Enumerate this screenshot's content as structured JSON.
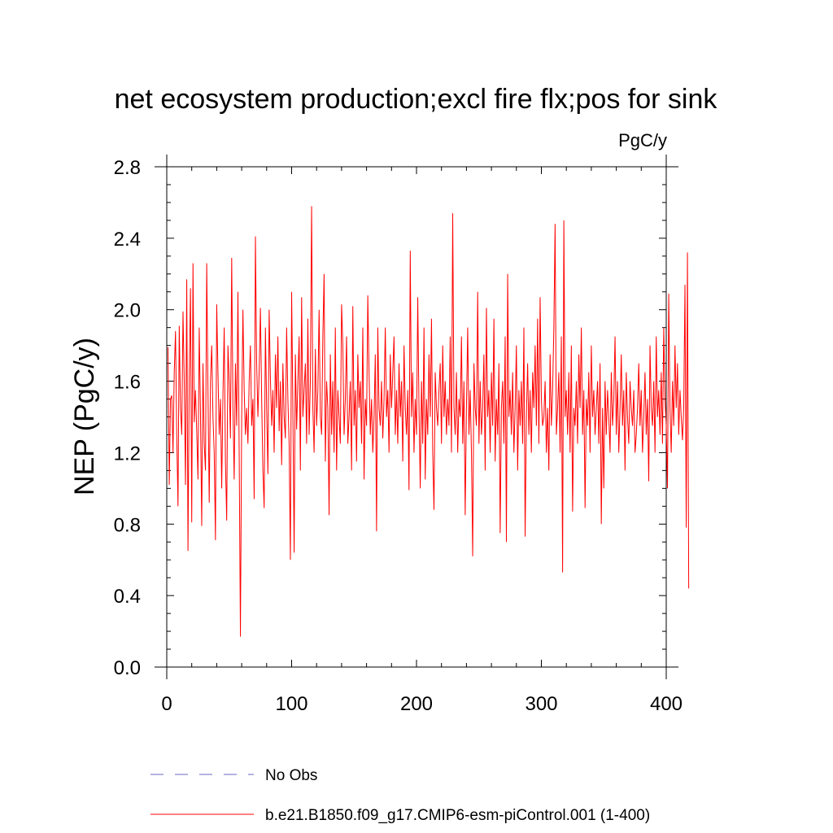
{
  "chart_data": {
    "type": "line",
    "title": "net ecosystem production;excl fire flx;pos for sink",
    "units": "PgC/y",
    "ylabel": "NEP  (PgC/y)",
    "xlabel": "",
    "xlim": [
      0,
      400
    ],
    "ylim": [
      0.0,
      2.8
    ],
    "xticks": [
      0,
      100,
      200,
      300,
      400
    ],
    "xtick_labels": [
      "0",
      "100",
      "200",
      "300",
      "400"
    ],
    "yticks": [
      0.0,
      0.4,
      0.8,
      1.2,
      1.6,
      2.0,
      2.4,
      2.8
    ],
    "ytick_labels": [
      "0.0",
      "0.4",
      "0.8",
      "1.2",
      "1.6",
      "2.0",
      "2.4",
      "2.8"
    ],
    "series": [
      {
        "name": "b.e21.B1850.f09_g17.CMIP6-esm-piControl.001 (1-400)",
        "color": "#ff0000",
        "x_start": 1,
        "values": [
          1.79,
          1.02,
          1.5,
          1.52,
          1.2,
          1.65,
          1.88,
          1.3,
          0.9,
          1.91,
          1.45,
          1.3,
          1.99,
          1.6,
          1.02,
          2.17,
          0.65,
          1.62,
          2.12,
          0.81,
          2.26,
          1.37,
          1.55,
          1.32,
          1.05,
          1.9,
          1.42,
          0.79,
          1.7,
          1.25,
          1.1,
          2.26,
          1.55,
          0.92,
          1.6,
          1.8,
          1.4,
          1.2,
          0.71,
          2.03,
          1.65,
          1.3,
          1.5,
          1.0,
          1.52,
          1.9,
          1.15,
          0.82,
          1.8,
          1.6,
          1.28,
          2.29,
          1.45,
          1.05,
          1.7,
          1.35,
          2.1,
          1.2,
          0.17,
          1.4,
          2.0,
          1.55,
          1.3,
          1.45,
          1.25,
          1.6,
          1.8,
          1.35,
          1.5,
          0.94,
          2.41,
          1.7,
          1.4,
          1.65,
          2.01,
          1.5,
          1.1,
          0.89,
          1.9,
          1.45,
          1.08,
          2.0,
          1.62,
          1.35,
          1.55,
          1.2,
          1.75,
          1.45,
          1.85,
          1.32,
          1.6,
          1.13,
          1.7,
          1.4,
          1.28,
          1.9,
          1.5,
          1.25,
          0.6,
          2.1,
          1.45,
          0.64,
          1.75,
          1.33,
          1.6,
          1.85,
          1.1,
          2.07,
          1.4,
          1.55,
          1.7,
          1.25,
          1.95,
          1.3,
          1.6,
          2.58,
          1.45,
          1.2,
          1.78,
          1.35,
          1.55,
          2.0,
          1.4,
          1.3,
          1.85,
          2.2,
          1.15,
          1.6,
          1.45,
          0.85,
          1.75,
          1.3,
          1.6,
          1.2,
          1.9,
          1.1,
          1.55,
          1.4,
          1.25,
          2.03,
          1.8,
          1.3,
          1.5,
          1.85,
          1.25,
          1.4,
          1.6,
          1.1,
          2.02,
          1.35,
          1.55,
          1.15,
          1.75,
          1.45,
          1.6,
          1.25,
          1.9,
          1.05,
          1.5,
          1.35,
          2.08,
          1.65,
          1.3,
          1.5,
          1.2,
          1.4,
          1.75,
          0.76,
          1.9,
          1.45,
          1.35,
          1.6,
          1.28,
          1.5,
          1.9,
          1.4,
          1.55,
          1.2,
          1.75,
          1.45,
          1.65,
          1.85,
          1.3,
          1.55,
          1.25,
          1.7,
          1.4,
          1.6,
          1.15,
          1.8,
          1.45,
          1.3,
          1.55,
          0.99,
          2.33,
          1.4,
          1.65,
          1.2,
          1.5,
          1.3,
          2.07,
          1.45,
          1.0,
          1.6,
          1.25,
          1.9,
          1.05,
          1.5,
          1.3,
          1.75,
          1.4,
          1.95,
          1.2,
          0.88,
          1.65,
          1.45,
          1.35,
          1.55,
          1.7,
          1.25,
          1.8,
          1.4,
          1.6,
          1.3,
          1.5,
          1.35,
          1.85,
          1.2,
          2.54,
          1.45,
          1.3,
          1.65,
          1.2,
          1.5,
          1.4,
          1.85,
          1.25,
          1.6,
          0.85,
          1.45,
          1.9,
          1.3,
          1.55,
          1.2,
          0.62,
          1.7,
          1.45,
          1.35,
          2.1,
          1.25,
          1.6,
          1.3,
          1.45,
          1.75,
          1.1,
          2.01,
          1.4,
          1.55,
          1.2,
          1.65,
          1.35,
          1.95,
          1.15,
          1.5,
          1.3,
          1.7,
          0.75,
          1.45,
          1.6,
          1.25,
          1.85,
          0.7,
          2.2,
          1.4,
          1.55,
          1.3,
          1.65,
          1.2,
          1.45,
          1.8,
          1.1,
          1.55,
          1.35,
          1.6,
          1.25,
          1.9,
          0.73,
          1.4,
          1.7,
          1.3,
          1.55,
          1.2,
          1.65,
          1.45,
          1.8,
          1.35,
          1.95,
          1.25,
          2.07,
          1.5,
          1.35,
          1.4,
          1.6,
          1.2,
          1.45,
          1.1,
          1.75,
          1.35,
          1.55,
          1.9,
          2.48,
          1.3,
          1.45,
          1.65,
          1.2,
          1.85,
          0.53,
          2.5,
          1.4,
          1.55,
          1.3,
          1.65,
          1.2,
          1.8,
          0.87,
          1.45,
          1.35,
          1.6,
          1.25,
          1.75,
          1.45,
          1.9,
          1.3,
          1.55,
          0.89,
          1.5,
          1.35,
          1.65,
          1.2,
          1.8,
          1.4,
          1.55,
          1.3,
          1.45,
          1.6,
          1.25,
          1.7,
          0.8,
          1.45,
          1.0,
          1.6,
          1.3,
          1.55,
          1.4,
          1.2,
          1.65,
          1.35,
          1.5,
          1.85,
          1.3,
          1.6,
          1.2,
          1.45,
          1.75,
          1.35,
          1.55,
          1.1,
          1.65,
          1.4,
          1.25,
          1.6,
          1.45,
          1.35,
          1.55,
          1.2,
          1.3,
          1.45,
          1.7,
          1.35,
          1.55,
          1.2,
          1.4,
          1.65,
          1.3,
          1.5,
          1.04,
          1.8,
          1.45,
          1.35,
          1.6,
          1.2,
          1.85,
          1.4,
          1.55,
          1.3,
          1.65,
          1.25,
          1.9,
          1.5,
          1.35,
          1.0,
          2.09,
          1.45,
          1.2,
          1.6,
          1.35,
          1.8,
          1.45,
          1.7,
          1.3,
          1.55,
          1.4,
          1.27,
          1.45,
          2.14,
          0.78,
          2.32,
          0.44
        ]
      }
    ],
    "legend": [
      {
        "label": "No Obs",
        "style": "dashed",
        "color": "#6a6ac8"
      },
      {
        "label": "b.e21.B1850.f09_g17.CMIP6-esm-piControl.001 (1-400)",
        "style": "solid",
        "color": "#ff0000"
      }
    ],
    "legend_position": "bottom",
    "grid": false
  }
}
